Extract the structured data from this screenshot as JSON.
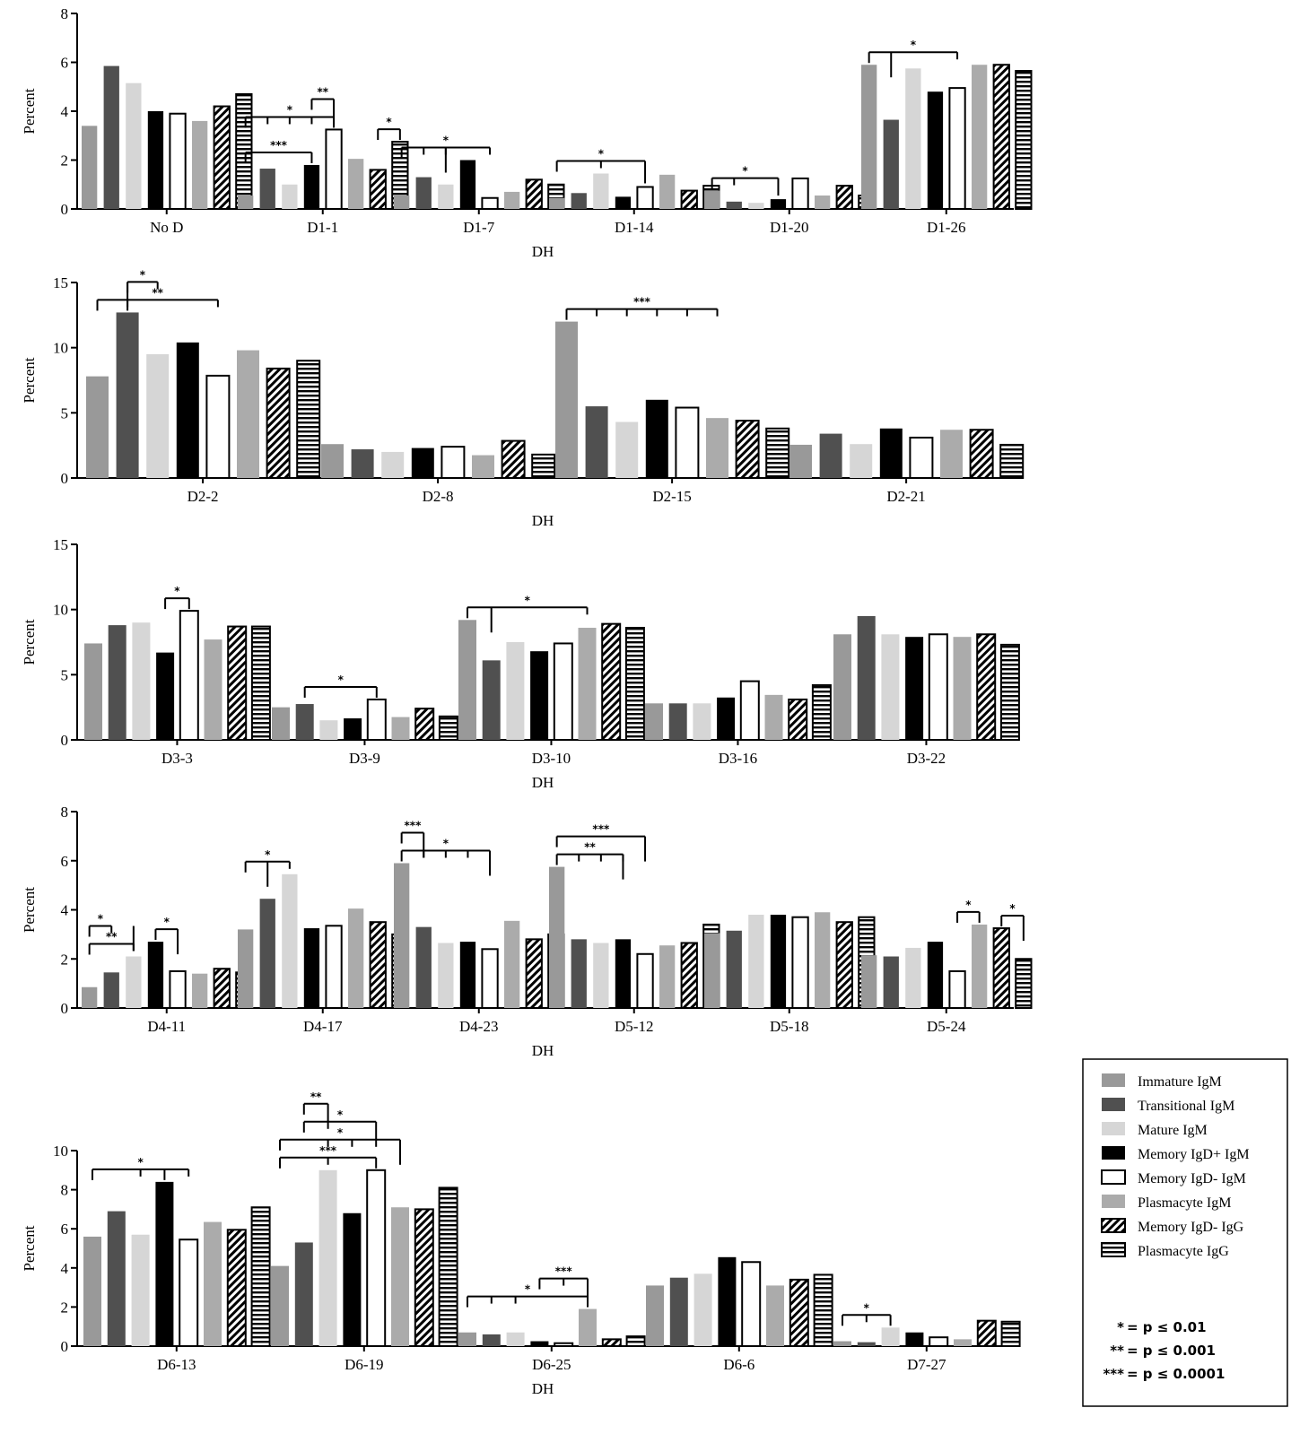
{
  "series": [
    {
      "name": "Immature IgM",
      "pattern": "immature-igm"
    },
    {
      "name": "Transitional IgM",
      "pattern": "transitional-igm"
    },
    {
      "name": "Mature IgM",
      "pattern": "mature-igm"
    },
    {
      "name": "Memory IgD+ IgM",
      "pattern": "memory-igdplus-igm"
    },
    {
      "name": "Memory IgD- IgM",
      "pattern": "memory-igdminus-igm"
    },
    {
      "name": "Plasmacyte IgM",
      "pattern": "plasmacyte-igm"
    },
    {
      "name": "Memory IgD- IgG",
      "pattern": "memory-igdminus-igg"
    },
    {
      "name": "Plasmacyte IgG",
      "pattern": "plasmacyte-igg"
    }
  ],
  "colors": {
    "immature": "#999999",
    "transitional": "#505050",
    "mature": "#d6d6d6",
    "memory_igdplus": "#000000",
    "memory_igdminus": "#ffffff",
    "plasmacyte_igm": "#ababab",
    "axis": "#000000"
  },
  "significance_legend": [
    {
      "stars": "*",
      "text": "= p  ≤ 0.01"
    },
    {
      "stars": "**",
      "text": "= p  ≤ 0.001"
    },
    {
      "stars": "***",
      "text": "= p  ≤ 0.0001"
    }
  ],
  "chart_data": [
    {
      "type": "bar",
      "xlabel": "DH",
      "ylabel": "Percent",
      "ylim": [
        0,
        8
      ],
      "yticks": [
        0,
        2,
        4,
        6,
        8
      ],
      "categories": [
        "No D",
        "D1-1",
        "D1-7",
        "D1-14",
        "D1-20",
        "D1-26"
      ],
      "values": [
        [
          3.4,
          5.85,
          5.15,
          4.0,
          3.9,
          3.6,
          4.2,
          4.7
        ],
        [
          0.55,
          1.65,
          1.0,
          1.8,
          3.25,
          2.05,
          1.6,
          2.75
        ],
        [
          0.55,
          1.3,
          1.0,
          2.0,
          0.45,
          0.7,
          1.2,
          1.0
        ],
        [
          0.45,
          0.65,
          1.45,
          0.5,
          0.9,
          1.4,
          0.75,
          0.95
        ],
        [
          0.75,
          0.3,
          0.25,
          0.4,
          1.25,
          0.55,
          0.95,
          0.55
        ],
        [
          5.9,
          3.65,
          5.75,
          4.8,
          4.95,
          5.9,
          5.9,
          5.65
        ]
      ],
      "significance": [
        {
          "category": "D1-1",
          "label": "***",
          "from": 0,
          "to": 3,
          "ticks": [],
          "drop": 3
        },
        {
          "category": "D1-1",
          "label": "*",
          "from": 0,
          "to": 4,
          "ticks": [
            1,
            2,
            3
          ],
          "drop": 4
        },
        {
          "category": "D1-1",
          "label": "**",
          "from": 3,
          "to": 4,
          "ticks": [],
          "drop": 4
        },
        {
          "category": "D1-1",
          "label": "*",
          "from": 6,
          "to": 7,
          "ticks": [],
          "drop": 7
        },
        {
          "category": "D1-7",
          "label": "*",
          "from": 0,
          "to": 4,
          "ticks": [
            1,
            2
          ],
          "drop": 2
        },
        {
          "category": "D1-14",
          "label": "*",
          "from": 0,
          "to": 4,
          "ticks": [
            2
          ],
          "drop": 4
        },
        {
          "category": "D1-20",
          "label": "*",
          "from": 0,
          "to": 3,
          "ticks": [
            1
          ],
          "drop": 3
        },
        {
          "category": "D1-26",
          "label": "*",
          "from": 0,
          "to": 4,
          "ticks": [],
          "drop": 1
        }
      ]
    },
    {
      "type": "bar",
      "xlabel": "DH",
      "ylabel": "Percent",
      "ylim": [
        0,
        15
      ],
      "yticks": [
        0,
        5,
        10,
        15
      ],
      "categories": [
        "D2-2",
        "D2-8",
        "D2-15",
        "D2-21"
      ],
      "values": [
        [
          7.8,
          12.7,
          9.5,
          10.4,
          7.85,
          9.8,
          8.4,
          9.0
        ],
        [
          2.6,
          2.2,
          2.0,
          2.3,
          2.4,
          1.75,
          2.85,
          1.8
        ],
        [
          12.0,
          5.5,
          4.3,
          6.0,
          5.4,
          4.6,
          4.4,
          3.8
        ],
        [
          2.55,
          3.4,
          2.6,
          3.8,
          3.1,
          3.7,
          3.7,
          2.55
        ]
      ],
      "significance": [
        {
          "category": "D2-2",
          "label": "**",
          "from": 0,
          "to": 4,
          "ticks": [],
          "drop": 1
        },
        {
          "category": "D2-2",
          "label": "*",
          "from": 1,
          "to": 2,
          "ticks": [],
          "drop": 1
        },
        {
          "category": "D2-15",
          "label": "***",
          "from": 0,
          "to": 5,
          "ticks": [
            1,
            2,
            3,
            4,
            5
          ],
          "drop": 0
        }
      ]
    },
    {
      "type": "bar",
      "xlabel": "DH",
      "ylabel": "Percent",
      "ylim": [
        0,
        15
      ],
      "yticks": [
        0,
        5,
        10,
        15
      ],
      "categories": [
        "D3-3",
        "D3-9",
        "D3-10",
        "D3-16",
        "D3-22"
      ],
      "values": [
        [
          7.4,
          8.8,
          9.0,
          6.7,
          9.9,
          7.7,
          8.7,
          8.7
        ],
        [
          2.5,
          2.75,
          1.5,
          1.65,
          3.1,
          1.75,
          2.4,
          1.8
        ],
        [
          9.2,
          6.1,
          7.5,
          6.8,
          7.4,
          8.6,
          8.9,
          8.6
        ],
        [
          2.8,
          2.8,
          2.8,
          3.25,
          4.5,
          3.45,
          3.1,
          4.2
        ],
        [
          8.1,
          9.5,
          8.1,
          7.9,
          8.1,
          7.9,
          8.1,
          7.3
        ]
      ],
      "significance": [
        {
          "category": "D3-3",
          "label": "*",
          "from": 3,
          "to": 4,
          "ticks": [],
          "drop": 4
        },
        {
          "category": "D3-9",
          "label": "*",
          "from": 1,
          "to": 4,
          "ticks": [],
          "drop": 4
        },
        {
          "category": "D3-10",
          "label": "*",
          "from": 0,
          "to": 5,
          "ticks": [],
          "drop": 1
        }
      ]
    },
    {
      "type": "bar",
      "xlabel": "DH",
      "ylabel": "Percent",
      "ylim": [
        0,
        8
      ],
      "yticks": [
        0,
        2,
        4,
        6,
        8
      ],
      "categories": [
        "D4-11",
        "D4-17",
        "D4-23",
        "D5-12",
        "D5-18",
        "D5-24"
      ],
      "values": [
        [
          0.85,
          1.45,
          2.1,
          2.7,
          1.5,
          1.4,
          1.6,
          1.45
        ],
        [
          3.2,
          4.45,
          5.45,
          3.25,
          3.35,
          4.05,
          3.5,
          3.0
        ],
        [
          5.9,
          3.3,
          2.65,
          2.7,
          2.4,
          3.55,
          2.8,
          3.0
        ],
        [
          5.75,
          2.8,
          2.65,
          2.8,
          2.2,
          2.55,
          2.65,
          3.4
        ],
        [
          3.05,
          3.15,
          3.8,
          3.8,
          3.7,
          3.9,
          3.5,
          3.7
        ],
        [
          2.15,
          2.1,
          2.45,
          2.7,
          1.5,
          3.4,
          3.25,
          2.0
        ]
      ],
      "significance": [
        {
          "category": "D4-11",
          "label": "**",
          "from": 0,
          "to": 2,
          "ticks": [],
          "drop": 3
        },
        {
          "category": "D4-11",
          "label": "*",
          "from": 0,
          "to": 1,
          "ticks": [],
          "drop": 2
        },
        {
          "category": "D4-11",
          "label": "*",
          "from": 3,
          "to": 4,
          "ticks": [],
          "drop": 4
        },
        {
          "category": "D4-17",
          "label": "*",
          "from": 0,
          "to": 2,
          "ticks": [],
          "drop": 1
        },
        {
          "category": "D4-23",
          "label": "*",
          "from": 0,
          "to": 4,
          "ticks": [
            1,
            2,
            3
          ],
          "drop": 4
        },
        {
          "category": "D4-23",
          "label": "***",
          "from": 0,
          "to": 1,
          "ticks": [],
          "drop": 1
        },
        {
          "category": "D5-12",
          "label": "**",
          "from": 0,
          "to": 3,
          "ticks": [
            1,
            2,
            3
          ],
          "drop": 3
        },
        {
          "category": "D5-12",
          "label": "***",
          "from": 0,
          "to": 4,
          "ticks": [],
          "drop": 4
        },
        {
          "category": "D5-24",
          "label": "*",
          "from": 4,
          "to": 5,
          "ticks": [],
          "drop": 5
        },
        {
          "category": "D5-24",
          "label": "*",
          "from": 6,
          "to": 7,
          "ticks": [],
          "drop": 7
        }
      ]
    },
    {
      "type": "bar",
      "xlabel": "DH",
      "ylabel": "Percent",
      "ylim": [
        0,
        10
      ],
      "yticks": [
        0,
        2,
        4,
        6,
        8,
        10
      ],
      "categories": [
        "D6-13",
        "D6-19",
        "D6-25",
        "D6-6",
        "D7-27"
      ],
      "values": [
        [
          5.6,
          6.9,
          5.7,
          8.4,
          5.45,
          6.35,
          5.95,
          7.1
        ],
        [
          4.1,
          5.3,
          9.0,
          6.8,
          9.0,
          7.1,
          7.0,
          8.1
        ],
        [
          0.7,
          0.6,
          0.7,
          0.25,
          0.15,
          1.9,
          0.35,
          0.5
        ],
        [
          3.1,
          3.5,
          3.7,
          4.55,
          4.3,
          3.1,
          3.4,
          3.65
        ],
        [
          0.25,
          0.2,
          0.95,
          0.7,
          0.45,
          0.35,
          1.3,
          1.25
        ]
      ],
      "significance": [
        {
          "category": "D6-13",
          "label": "*",
          "from": 0,
          "to": 4,
          "ticks": [
            2
          ],
          "drop": 3
        },
        {
          "category": "D6-19",
          "label": "***",
          "from": 0,
          "to": 4,
          "ticks": [
            2
          ],
          "drop": 4
        },
        {
          "category": "D6-19",
          "label": "*",
          "from": 0,
          "to": 5,
          "ticks": [
            2,
            3
          ],
          "drop": 5
        },
        {
          "category": "D6-19",
          "label": "*",
          "from": 1,
          "to": 4,
          "ticks": [],
          "drop": 4
        },
        {
          "category": "D6-19",
          "label": "**",
          "from": 1,
          "to": 2,
          "ticks": [],
          "drop": 2
        },
        {
          "category": "D6-25",
          "label": "*",
          "from": 0,
          "to": 5,
          "ticks": [
            1,
            2
          ],
          "drop": 5
        },
        {
          "category": "D6-25",
          "label": "***",
          "from": 3,
          "to": 5,
          "ticks": [
            4
          ],
          "drop": 5
        },
        {
          "category": "D7-27",
          "label": "*",
          "from": 0,
          "to": 2,
          "ticks": [
            1
          ],
          "drop": 2
        }
      ]
    }
  ]
}
